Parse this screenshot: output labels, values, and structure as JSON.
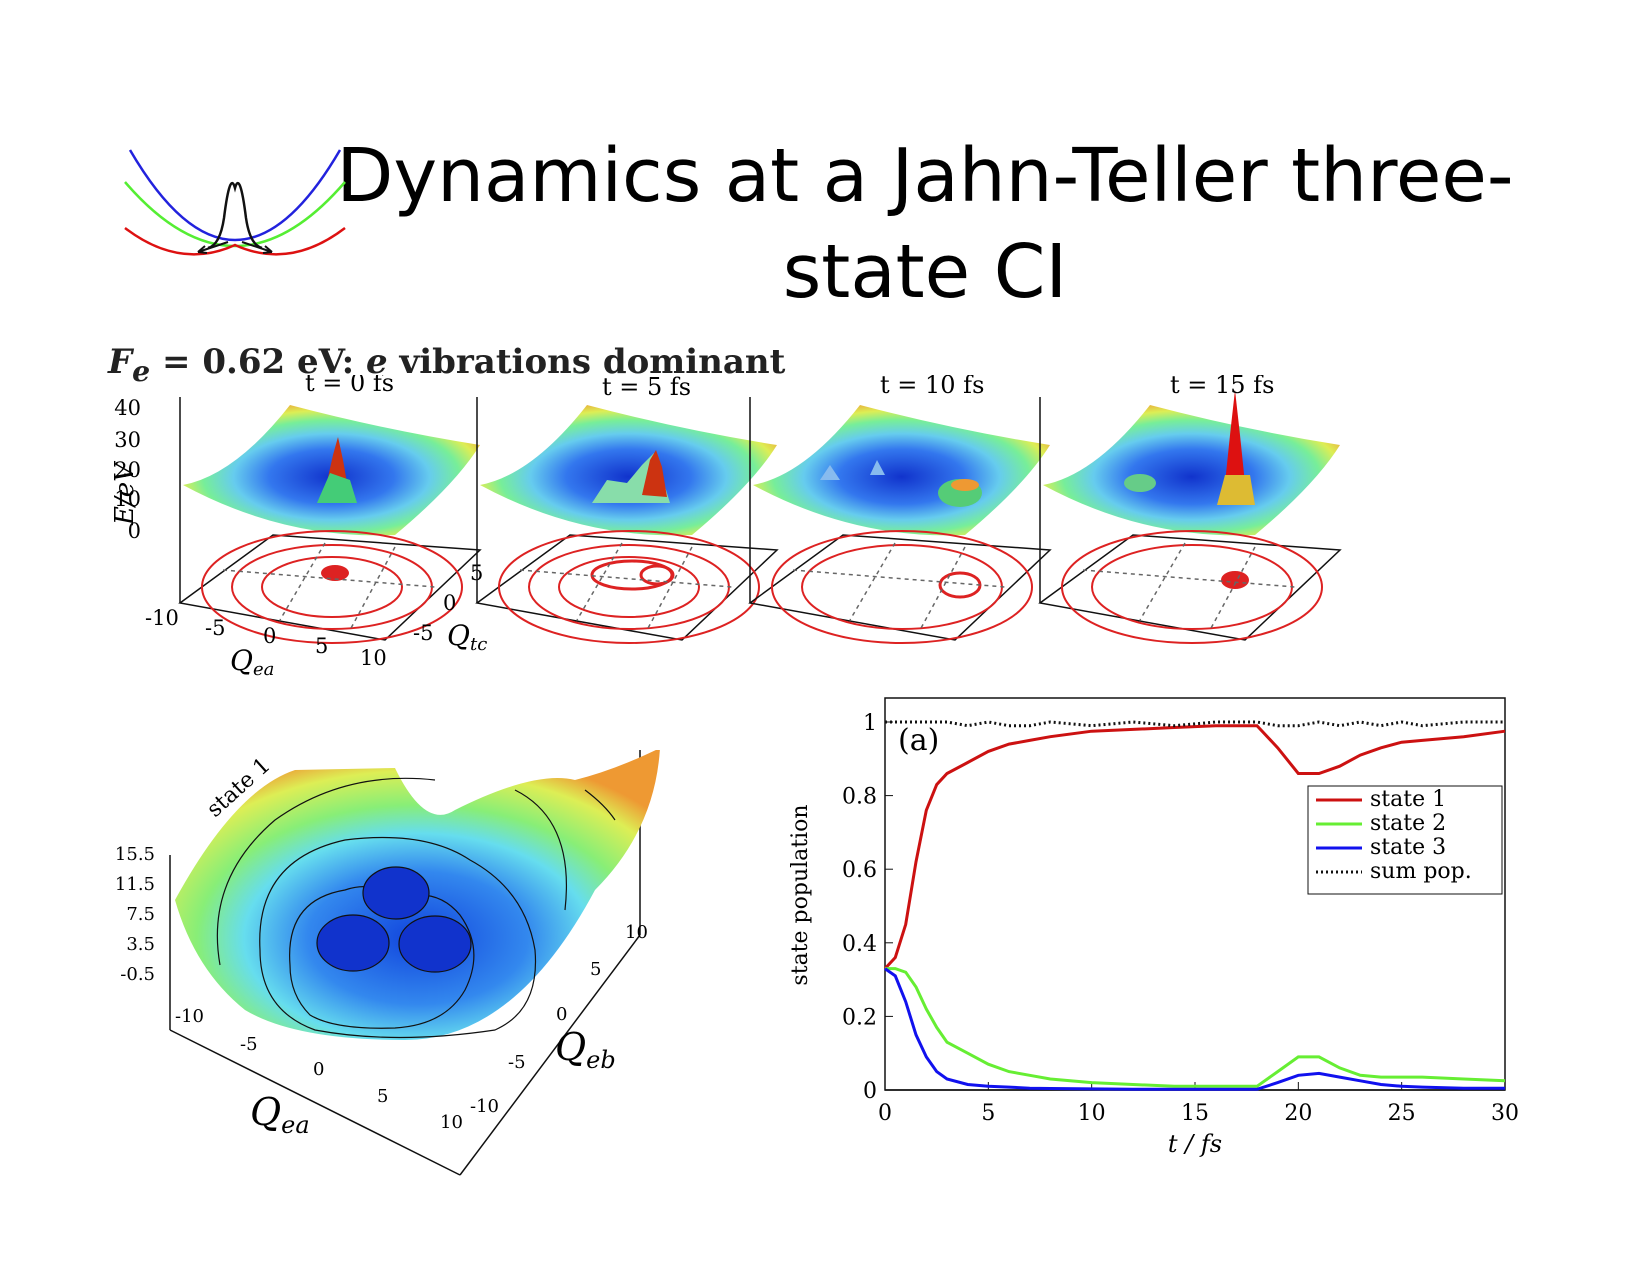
{
  "slide": {
    "title_line1": "Dynamics at a Jahn-Teller three-",
    "title_line2": "state CI",
    "subtitle_sym": "F",
    "subtitle_sub": "e",
    "subtitle_rest": " = 0.62 eV: ",
    "subtitle_e": "e",
    "subtitle_tail": " vibrations dominant"
  },
  "snapshots": {
    "time_labels": [
      "t = 0 fs",
      "t = 5 fs",
      "t = 10 fs",
      "t = 15 fs"
    ],
    "zlabel": "E/eV",
    "zticks": [
      "40",
      "30",
      "20",
      "10",
      "0"
    ],
    "qea_ticks": [
      "-10",
      "-5",
      "0",
      "5",
      "10"
    ],
    "qea_label": "Q",
    "qea_sub": "ea",
    "qtc_ticks": [
      "5",
      "0",
      "-5"
    ],
    "qtc_label": "Q",
    "qtc_sub": "tc"
  },
  "surface": {
    "state_label": "state 1",
    "zticks": [
      "15.5",
      "11.5",
      "7.5",
      "3.5",
      "-0.5"
    ],
    "qea_ticks": [
      "-10",
      "-5",
      "0",
      "5",
      "10"
    ],
    "qeb_ticks": [
      "10",
      "5",
      "0",
      "-5",
      "-10"
    ],
    "qea_label": "Q",
    "qea_sub": "ea",
    "qeb_label": "Q",
    "qeb_sub": "eb"
  },
  "chart_data": {
    "type": "line",
    "panel_label": "(a)",
    "xlabel": "t / fs",
    "ylabel": "state population",
    "xlim": [
      0,
      30
    ],
    "ylim": [
      0,
      1
    ],
    "x_ticks": [
      "0",
      "5",
      "10",
      "15",
      "20",
      "25",
      "30"
    ],
    "y_ticks": [
      "0",
      "0.2",
      "0.4",
      "0.6",
      "0.8",
      "1"
    ],
    "legend_position": "top-right",
    "x": [
      0,
      0.5,
      1,
      1.5,
      2,
      2.5,
      3,
      4,
      5,
      6,
      7,
      8,
      10,
      12,
      14,
      16,
      18,
      19,
      20,
      21,
      22,
      23,
      24,
      25,
      26,
      28,
      30
    ],
    "series": [
      {
        "name": "state 1",
        "color": "#cc1111",
        "style": "solid",
        "values": [
          0.33,
          0.36,
          0.45,
          0.62,
          0.76,
          0.83,
          0.86,
          0.89,
          0.92,
          0.94,
          0.95,
          0.96,
          0.975,
          0.98,
          0.985,
          0.99,
          0.99,
          0.93,
          0.86,
          0.86,
          0.88,
          0.91,
          0.93,
          0.945,
          0.95,
          0.96,
          0.975
        ]
      },
      {
        "name": "state 2",
        "color": "#66ee33",
        "style": "solid",
        "values": [
          0.33,
          0.33,
          0.32,
          0.28,
          0.22,
          0.17,
          0.13,
          0.1,
          0.07,
          0.05,
          0.04,
          0.03,
          0.02,
          0.015,
          0.01,
          0.01,
          0.01,
          0.05,
          0.09,
          0.09,
          0.06,
          0.04,
          0.035,
          0.035,
          0.035,
          0.03,
          0.025
        ]
      },
      {
        "name": "state 3",
        "color": "#1111ee",
        "style": "solid",
        "values": [
          0.33,
          0.31,
          0.24,
          0.15,
          0.09,
          0.05,
          0.03,
          0.015,
          0.01,
          0.008,
          0.005,
          0.004,
          0.003,
          0.002,
          0.002,
          0.002,
          0.002,
          0.02,
          0.04,
          0.045,
          0.035,
          0.025,
          0.015,
          0.01,
          0.008,
          0.005,
          0.005
        ]
      },
      {
        "name": "sum pop.",
        "color": "#111111",
        "style": "dotted",
        "values": [
          1.0,
          1.0,
          1.0,
          1.0,
          1.0,
          1.0,
          1.0,
          0.99,
          1.0,
          0.99,
          0.99,
          1.0,
          0.99,
          1.0,
          0.99,
          1.0,
          1.0,
          0.99,
          0.99,
          1.0,
          0.99,
          1.0,
          0.99,
          1.0,
          0.99,
          1.0,
          1.0
        ]
      }
    ]
  }
}
